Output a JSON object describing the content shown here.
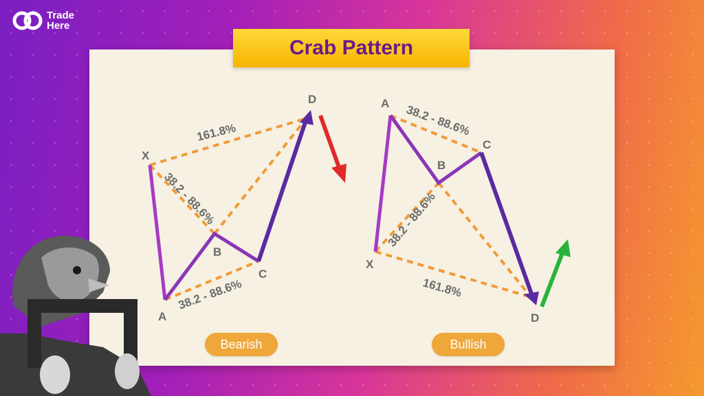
{
  "brand": {
    "name_line1": "Trade",
    "name_line2": "Here"
  },
  "title": "Crab Pattern",
  "colors": {
    "orange_dash": "#f29a38",
    "purple_leg": "#a53bc4",
    "purple_dark": "#5a2aa0",
    "arrow_down": "#e02a2a",
    "arrow_up": "#28b43c",
    "label_gray": "#6a6a6a",
    "pill": "#efa73a"
  },
  "bearish": {
    "label": "Bearish",
    "points": {
      "X": "X",
      "A": "A",
      "B": "B",
      "C": "C",
      "D": "D"
    },
    "ratio_xd": "161.8%",
    "ratio_xb": "38.2 - 88.6%",
    "ratio_ac": "38.2 - 88.6%"
  },
  "bullish": {
    "label": "Bullish",
    "points": {
      "X": "X",
      "A": "A",
      "B": "B",
      "C": "C",
      "D": "D"
    },
    "ratio_ac": "38.2 - 88.6%",
    "ratio_xb": "38.2 - 88.6%",
    "ratio_xd": "161.8%"
  }
}
